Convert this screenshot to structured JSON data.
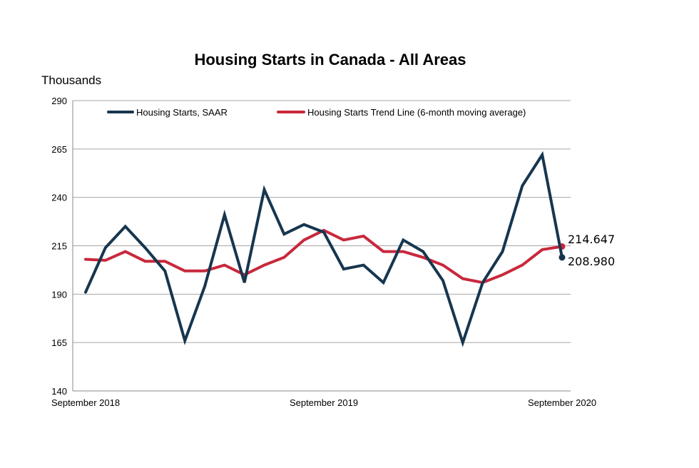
{
  "chart_data": {
    "type": "line",
    "title": "Housing Starts in Canada - All Areas",
    "ylabel": "Thousands",
    "ylim": [
      140,
      290
    ],
    "yticks": [
      140,
      165,
      190,
      215,
      240,
      265,
      290
    ],
    "xtick_labels": [
      "September 2018",
      "September 2019",
      "September 2020"
    ],
    "grid": true,
    "legend_position": "top",
    "series": [
      {
        "name": "Housing Starts, SAAR",
        "color": "#17364f",
        "values": [
          191,
          214,
          225,
          214,
          202,
          166,
          194,
          231,
          196,
          244,
          221,
          226,
          222,
          203,
          205,
          196,
          218,
          212,
          197,
          165,
          196,
          212,
          246,
          262,
          208.98
        ]
      },
      {
        "name": "Housing Starts Trend Line (6-month moving average)",
        "color": "#c8283c",
        "values": [
          208,
          207.5,
          212,
          207,
          207,
          202,
          202,
          205,
          200,
          205,
          209,
          218,
          223,
          218,
          220,
          212,
          212,
          209,
          205,
          198,
          196,
          200,
          205,
          213,
          214.647
        ]
      }
    ],
    "end_labels": [
      "214.647",
      "208.980"
    ]
  }
}
